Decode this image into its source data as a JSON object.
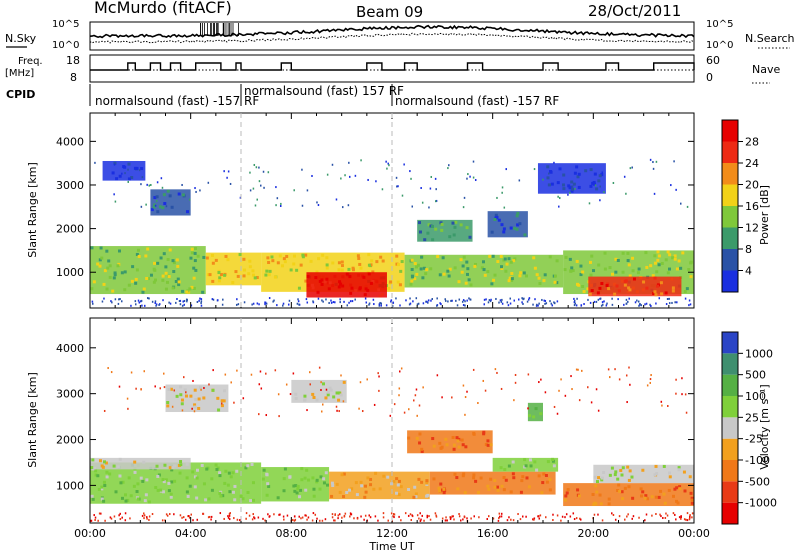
{
  "header": {
    "station": "McMurdo (fitACF)",
    "beam": "Beam 09",
    "date": "28/Oct/2011"
  },
  "strips": {
    "nsky_label": "N.Sky",
    "nsky_ticks": [
      "10^5",
      "10^0"
    ],
    "nsearch_label": "N.Search",
    "nsearch_ticks": [
      "10^5",
      "10^0"
    ],
    "freq_label_1": "Freq.",
    "freq_label_2": "[MHz]",
    "freq_ticks": [
      "18",
      "8"
    ],
    "nave_label": "Nave",
    "nave_ticks": [
      "60",
      "0"
    ],
    "cpid_label": "CPID",
    "cpid_segments": [
      {
        "text": "normalsound (fast) -157 RF",
        "start_hr": 0
      },
      {
        "text": "normalsound (fast) 157 RF",
        "start_hr": 6
      },
      {
        "text": "normalsound (fast) -157 RF",
        "start_hr": 12
      }
    ]
  },
  "chart_data": [
    {
      "type": "heatmap",
      "name": "power",
      "ylabel": "Slant Range [km]",
      "ylim": [
        180,
        4650
      ],
      "yticks": [
        "1000",
        "2000",
        "3000",
        "4000"
      ],
      "ytick_values": [
        1000,
        2000,
        3000,
        4000
      ],
      "xlim_hours": [
        0,
        24
      ],
      "colorbar_label": "Power [dB]",
      "colorbar_ticks": [
        "4",
        "8",
        "12",
        "16",
        "20",
        "24",
        "28"
      ],
      "colorbar_colors": [
        "#1a2fe0",
        "#2952a6",
        "#3b9a6a",
        "#7fc83a",
        "#f2d218",
        "#f28c1a",
        "#ee2a14",
        "#e60000"
      ],
      "regions": [
        {
          "x0": 0.0,
          "x1": 4.6,
          "y0": 500,
          "y1": 1600,
          "level": 3
        },
        {
          "x0": 4.6,
          "x1": 6.8,
          "y0": 700,
          "y1": 1450,
          "level": 4
        },
        {
          "x0": 6.8,
          "x1": 12.5,
          "y0": 550,
          "y1": 1450,
          "level": 4
        },
        {
          "x0": 8.6,
          "x1": 11.8,
          "y0": 420,
          "y1": 1000,
          "level": 7
        },
        {
          "x0": 12.5,
          "x1": 18.8,
          "y0": 650,
          "y1": 1400,
          "level": 3
        },
        {
          "x0": 18.8,
          "x1": 24.0,
          "y0": 500,
          "y1": 1500,
          "level": 3
        },
        {
          "x0": 19.8,
          "x1": 23.5,
          "y0": 450,
          "y1": 900,
          "level": 6
        },
        {
          "x0": 13.0,
          "x1": 15.2,
          "y0": 1700,
          "y1": 2200,
          "level": 2
        },
        {
          "x0": 15.8,
          "x1": 17.4,
          "y0": 1800,
          "y1": 2400,
          "level": 1
        },
        {
          "x0": 2.4,
          "x1": 4.0,
          "y0": 2300,
          "y1": 2900,
          "level": 1
        },
        {
          "x0": 0.5,
          "x1": 2.2,
          "y0": 3100,
          "y1": 3550,
          "level": 0
        },
        {
          "x0": 17.8,
          "x1": 20.5,
          "y0": 2800,
          "y1": 3500,
          "level": 0
        }
      ]
    },
    {
      "type": "heatmap",
      "name": "velocity",
      "ylabel": "Slant Range [km]",
      "ylim": [
        180,
        4650
      ],
      "yticks": [
        "1000",
        "2000",
        "3000",
        "4000"
      ],
      "ytick_values": [
        1000,
        2000,
        3000,
        4000
      ],
      "xlim_hours": [
        0,
        24
      ],
      "xticks": [
        "00:00",
        "04:00",
        "08:00",
        "12:00",
        "16:00",
        "20:00",
        "00:00"
      ],
      "xlabel": "Time UT",
      "colorbar_label": "Velocity [m s⁻¹]",
      "colorbar_ticks": [
        "1000",
        "500",
        "100",
        "25",
        "-25",
        "-100",
        "-500",
        "-1000"
      ],
      "colorbar_colors": [
        "#2a44c6",
        "#3f8f6f",
        "#55b044",
        "#7fd03a",
        "#c8c8c8",
        "#f2a01e",
        "#f07818",
        "#e83a16",
        "#e60000"
      ],
      "regions": [
        {
          "x0": 0.0,
          "x1": 6.8,
          "y0": 600,
          "y1": 1500,
          "level": 3
        },
        {
          "x0": 0.0,
          "x1": 4.0,
          "y0": 1350,
          "y1": 1600,
          "level": 4
        },
        {
          "x0": 6.8,
          "x1": 9.5,
          "y0": 650,
          "y1": 1400,
          "level": 3
        },
        {
          "x0": 9.5,
          "x1": 13.5,
          "y0": 700,
          "y1": 1300,
          "level": 5
        },
        {
          "x0": 13.5,
          "x1": 18.5,
          "y0": 800,
          "y1": 1300,
          "level": 6
        },
        {
          "x0": 12.6,
          "x1": 16.0,
          "y0": 1700,
          "y1": 2200,
          "level": 6
        },
        {
          "x0": 16.0,
          "x1": 18.6,
          "y0": 1300,
          "y1": 1600,
          "level": 3
        },
        {
          "x0": 18.8,
          "x1": 24.0,
          "y0": 550,
          "y1": 1050,
          "level": 6
        },
        {
          "x0": 20.0,
          "x1": 24.0,
          "y0": 1050,
          "y1": 1450,
          "level": 4
        },
        {
          "x0": 17.4,
          "x1": 18.0,
          "y0": 2400,
          "y1": 2800,
          "level": 2
        },
        {
          "x0": 3.0,
          "x1": 5.5,
          "y0": 2600,
          "y1": 3200,
          "level": 4
        },
        {
          "x0": 8.0,
          "x1": 10.2,
          "y0": 2800,
          "y1": 3300,
          "level": 4
        }
      ]
    }
  ]
}
